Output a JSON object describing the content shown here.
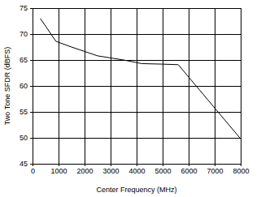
{
  "chart_data": {
    "type": "line",
    "x_label": "Center Frequency (MHz)",
    "y_label": "Two Tone SFDR (dBFS)",
    "x": [
      300,
      900,
      1500,
      2500,
      3500,
      4200,
      5000,
      5600,
      8000
    ],
    "values": [
      73,
      68.6,
      67.5,
      65.8,
      65.0,
      64.3,
      64.2,
      64.1,
      49.8
    ],
    "color": "#000000",
    "xlim": [
      0,
      8000
    ],
    "xticks": [
      0,
      1000,
      2000,
      3000,
      4000,
      5000,
      6000,
      7000,
      8000
    ],
    "ylim": [
      45,
      75
    ],
    "yticks": [
      45,
      50,
      55,
      60,
      65,
      70,
      75
    ],
    "grid": true
  }
}
